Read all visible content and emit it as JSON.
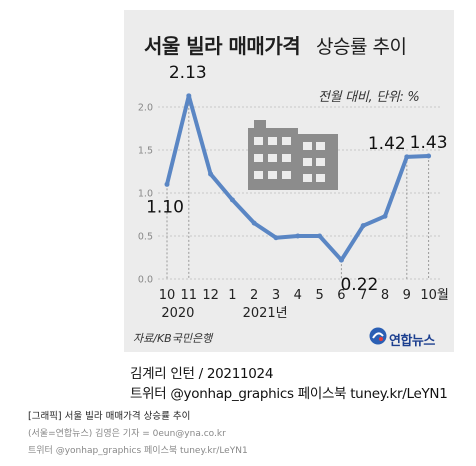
{
  "title": {
    "main": "서울 빌라 매매가격",
    "sub": "상승률 추이"
  },
  "unit_note": "전월 대비, 단위: %",
  "source": "자료/KB국민은행",
  "logo_text": "연합뉴스",
  "credits": {
    "line1": "김계리 인턴 / 20211024",
    "line2": "트위터 @yonhap_graphics  페이스북 tuney.kr/LeYN1"
  },
  "caption": {
    "line1": "[그래픽] 서울 빌라 매매가격 상승률 추이",
    "line2": "(서울=연합뉴스) 김영은 기자 = 0eun@yna.co.kr",
    "line3": "트위터 @yonhap_graphics  페이스북 tuney.kr/LeYN1"
  },
  "chart_data": {
    "type": "line",
    "x": [
      "10",
      "11",
      "12",
      "1",
      "2",
      "3",
      "4",
      "5",
      "6",
      "7",
      "8",
      "9",
      "10월"
    ],
    "year_labels": [
      "2020",
      "2021년"
    ],
    "values": [
      1.1,
      2.13,
      1.22,
      0.92,
      0.65,
      0.48,
      0.5,
      0.5,
      0.22,
      0.62,
      0.73,
      1.42,
      1.43
    ],
    "data_labels": [
      {
        "index": 0,
        "text": "1.10"
      },
      {
        "index": 1,
        "text": "2.13"
      },
      {
        "index": 8,
        "text": "0.22"
      },
      {
        "index": 11,
        "text": "1.42"
      },
      {
        "index": 12,
        "text": "1.43"
      }
    ],
    "ylim": [
      0,
      2.5
    ],
    "yticks": [
      "0.0",
      "0.5",
      "1.0",
      "1.5",
      "2.0"
    ],
    "grid": true,
    "colors": {
      "line": "#5a86c4",
      "grid": "#c9c9c9",
      "background": "#ececec",
      "building": "#8c8c8c"
    }
  }
}
